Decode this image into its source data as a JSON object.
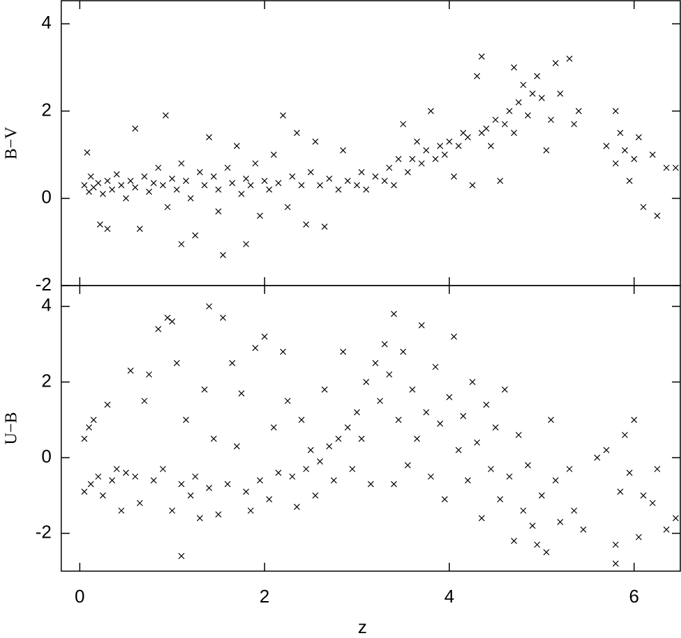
{
  "chart_data": [
    {
      "type": "scatter",
      "ylabel": "B−V",
      "color": "#000000",
      "xlim": [
        -0.2,
        6.5
      ],
      "ylim": [
        -2,
        4.53
      ],
      "xticks": [
        0,
        2,
        4,
        6
      ],
      "yticks": [
        -2,
        0,
        2,
        4
      ],
      "x": [
        0.05,
        0.08,
        0.1,
        0.12,
        0.15,
        0.2,
        0.22,
        0.25,
        0.3,
        0.3,
        0.35,
        0.4,
        0.45,
        0.5,
        0.55,
        0.6,
        0.6,
        0.65,
        0.7,
        0.75,
        0.8,
        0.85,
        0.9,
        0.93,
        0.95,
        1.0,
        1.05,
        1.1,
        1.1,
        1.15,
        1.2,
        1.25,
        1.3,
        1.35,
        1.4,
        1.45,
        1.5,
        1.5,
        1.55,
        1.6,
        1.65,
        1.7,
        1.75,
        1.8,
        1.8,
        1.85,
        1.9,
        1.95,
        2.0,
        2.05,
        2.1,
        2.15,
        2.2,
        2.25,
        2.3,
        2.35,
        2.4,
        2.45,
        2.5,
        2.55,
        2.6,
        2.65,
        2.7,
        2.8,
        2.85,
        2.9,
        3.0,
        3.05,
        3.1,
        3.2,
        3.3,
        3.35,
        3.4,
        3.45,
        3.5,
        3.55,
        3.6,
        3.65,
        3.7,
        3.75,
        3.8,
        3.85,
        3.9,
        3.95,
        4.0,
        4.05,
        4.1,
        4.15,
        4.2,
        4.25,
        4.3,
        4.35,
        4.35,
        4.4,
        4.45,
        4.5,
        4.55,
        4.6,
        4.65,
        4.7,
        4.7,
        4.75,
        4.8,
        4.85,
        4.9,
        4.95,
        5.0,
        5.05,
        5.1,
        5.15,
        5.2,
        5.3,
        5.35,
        5.4,
        5.7,
        5.8,
        5.85,
        5.8,
        5.9,
        5.95,
        6.0,
        6.05,
        6.1,
        6.2,
        6.25,
        6.35,
        6.45
      ],
      "values": [
        0.3,
        1.05,
        0.15,
        0.5,
        0.25,
        0.35,
        -0.6,
        0.1,
        0.4,
        -0.7,
        0.2,
        0.55,
        0.3,
        0.0,
        0.4,
        1.6,
        0.25,
        -0.7,
        0.5,
        0.15,
        0.35,
        0.7,
        0.3,
        1.9,
        -0.2,
        0.45,
        0.2,
        0.8,
        -1.05,
        0.4,
        0.0,
        -0.85,
        0.6,
        0.3,
        1.4,
        0.5,
        -0.3,
        0.2,
        -1.3,
        0.7,
        0.35,
        1.2,
        0.1,
        -1.05,
        0.45,
        0.3,
        0.8,
        -0.4,
        0.4,
        0.2,
        1.0,
        0.35,
        1.9,
        -0.2,
        0.5,
        1.5,
        0.3,
        -0.6,
        0.6,
        1.3,
        0.3,
        -0.65,
        0.45,
        0.2,
        1.1,
        0.4,
        0.3,
        0.6,
        0.2,
        0.5,
        0.4,
        0.7,
        0.3,
        0.9,
        1.7,
        0.6,
        0.9,
        1.3,
        0.8,
        1.1,
        2.0,
        0.9,
        1.2,
        1.0,
        1.3,
        0.5,
        1.2,
        1.5,
        1.4,
        0.3,
        2.8,
        1.5,
        3.25,
        1.6,
        1.2,
        1.8,
        0.4,
        1.7,
        2.0,
        3.0,
        1.5,
        2.2,
        2.6,
        1.9,
        2.4,
        2.8,
        2.3,
        1.1,
        1.8,
        3.1,
        2.4,
        3.2,
        1.7,
        2.0,
        1.2,
        2.0,
        1.5,
        0.8,
        1.1,
        0.4,
        0.9,
        1.4,
        -0.2,
        1.0,
        -0.4,
        0.7,
        0.7
      ]
    },
    {
      "type": "scatter",
      "ylabel": "U−B",
      "xlabel": "z",
      "color": "#000000",
      "xlim": [
        -0.2,
        6.5
      ],
      "ylim": [
        -3,
        4.55
      ],
      "xticks": [
        0,
        2,
        4,
        6
      ],
      "yticks": [
        -2,
        0,
        2,
        4
      ],
      "x": [
        0.05,
        0.05,
        0.1,
        0.12,
        0.15,
        0.2,
        0.25,
        0.3,
        0.35,
        0.4,
        0.45,
        0.5,
        0.55,
        0.6,
        0.65,
        0.7,
        0.75,
        0.8,
        0.85,
        0.9,
        0.95,
        1.0,
        1.0,
        1.05,
        1.1,
        1.1,
        1.15,
        1.2,
        1.25,
        1.3,
        1.35,
        1.4,
        1.4,
        1.45,
        1.5,
        1.55,
        1.6,
        1.65,
        1.7,
        1.75,
        1.8,
        1.85,
        1.9,
        1.95,
        2.0,
        2.05,
        2.1,
        2.15,
        2.2,
        2.25,
        2.3,
        2.35,
        2.4,
        2.45,
        2.5,
        2.55,
        2.6,
        2.65,
        2.7,
        2.75,
        2.8,
        2.85,
        2.9,
        2.95,
        3.0,
        3.05,
        3.1,
        3.15,
        3.2,
        3.25,
        3.3,
        3.35,
        3.4,
        3.4,
        3.45,
        3.5,
        3.55,
        3.6,
        3.65,
        3.7,
        3.75,
        3.8,
        3.85,
        3.9,
        3.95,
        4.0,
        4.05,
        4.1,
        4.15,
        4.2,
        4.25,
        4.3,
        4.35,
        4.4,
        4.45,
        4.5,
        4.55,
        4.6,
        4.65,
        4.7,
        4.75,
        4.8,
        4.85,
        4.9,
        4.95,
        5.0,
        5.05,
        5.1,
        5.15,
        5.2,
        5.3,
        5.35,
        5.45,
        5.6,
        5.7,
        5.8,
        5.8,
        5.85,
        5.9,
        5.95,
        6.0,
        6.05,
        6.1,
        6.2,
        6.25,
        6.35,
        6.45
      ],
      "values": [
        -0.9,
        0.5,
        0.8,
        -0.7,
        1.0,
        -0.5,
        -1.0,
        1.4,
        -0.6,
        -0.3,
        -1.4,
        -0.4,
        2.3,
        -0.5,
        -1.2,
        1.5,
        2.2,
        -0.6,
        3.4,
        -0.3,
        3.7,
        3.6,
        -1.4,
        2.5,
        -2.6,
        -0.7,
        1.0,
        -1.0,
        -0.5,
        -1.6,
        1.8,
        4.0,
        -0.8,
        0.5,
        -1.5,
        3.7,
        -0.7,
        2.5,
        0.3,
        1.7,
        -0.9,
        -1.4,
        2.9,
        -0.6,
        3.2,
        -1.1,
        0.8,
        -0.4,
        2.8,
        1.5,
        -0.5,
        -1.3,
        1.0,
        -0.3,
        0.2,
        -1.0,
        -0.1,
        1.8,
        0.3,
        -0.6,
        0.5,
        2.8,
        0.8,
        -0.3,
        1.2,
        0.5,
        2.0,
        -0.7,
        2.5,
        1.5,
        3.0,
        2.2,
        -0.7,
        3.8,
        1.0,
        2.8,
        -0.2,
        1.8,
        0.5,
        3.5,
        1.2,
        -0.5,
        2.4,
        0.9,
        -1.1,
        1.6,
        3.2,
        0.2,
        1.1,
        -0.6,
        2.0,
        0.4,
        -1.6,
        1.4,
        -0.3,
        0.8,
        -1.1,
        1.8,
        -0.5,
        -2.2,
        0.6,
        -1.4,
        -0.2,
        -1.8,
        -2.3,
        -1.0,
        -2.5,
        1.0,
        -0.6,
        -1.7,
        -0.3,
        -1.4,
        -1.9,
        0.0,
        0.2,
        -2.3,
        -2.8,
        -0.9,
        0.6,
        -0.4,
        1.0,
        -2.1,
        -1.0,
        -1.2,
        -0.3,
        -1.9,
        -1.6
      ]
    }
  ]
}
